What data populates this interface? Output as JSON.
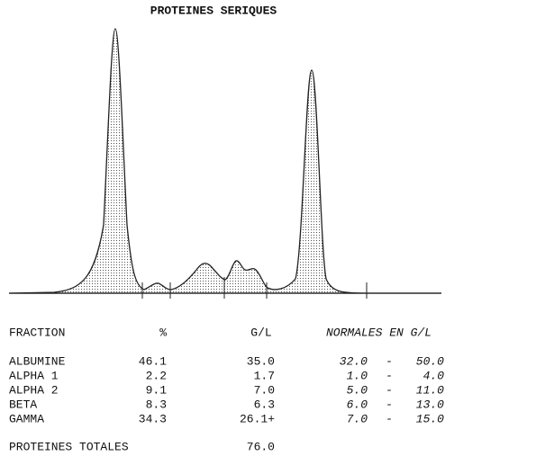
{
  "title": "PROTEINES SERIQUES",
  "table": {
    "header": [
      "FRACTION",
      "%",
      "G/L",
      "NORMALES EN G/L"
    ],
    "range_separator": "-",
    "rows": [
      [
        "ALBUMINE",
        "46.1",
        "35.0",
        "32.0",
        "50.0"
      ],
      [
        "ALPHA 1",
        "2.2",
        "1.7",
        "1.0",
        "4.0"
      ],
      [
        "ALPHA 2",
        "9.1",
        "7.0",
        "5.0",
        "11.0"
      ],
      [
        "BETA",
        "8.3",
        "6.3",
        "6.0",
        "13.0"
      ],
      [
        "GAMMA",
        "34.3",
        "26.1+",
        "7.0",
        "15.0"
      ]
    ]
  },
  "total": {
    "label": "PROTEINES TOTALES",
    "value": "76.0"
  }
}
